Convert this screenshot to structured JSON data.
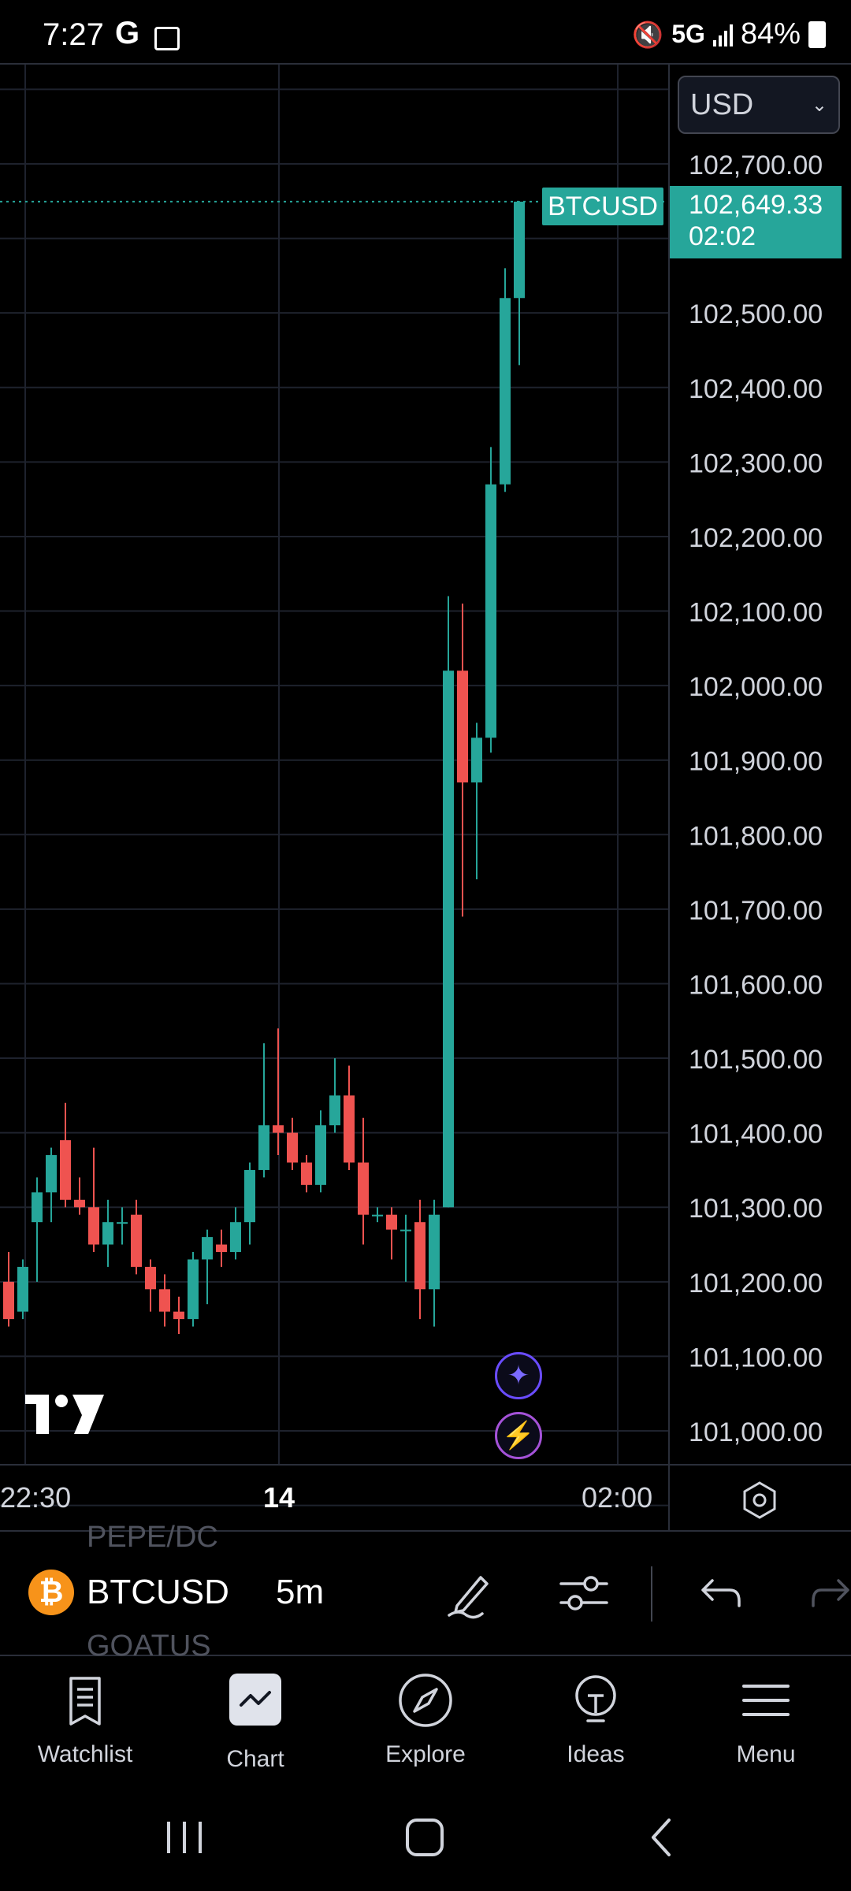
{
  "status_bar": {
    "time": "7:27",
    "google_icon": "G",
    "network": "5G",
    "battery": "84%"
  },
  "chart": {
    "currency_select": "USD",
    "symbol_tag": "BTCUSD",
    "last_price": "102,649.33",
    "countdown": "02:02",
    "colors": {
      "up": "#26a69a",
      "down": "#ef5350",
      "grid": "#1e222d",
      "background": "#000000"
    }
  },
  "chart_data": {
    "type": "candlestick",
    "y_tick_labels": [
      "102,700.00",
      "102,500.00",
      "102,400.00",
      "102,300.00",
      "102,200.00",
      "102,100.00",
      "102,000.00",
      "101,900.00",
      "101,800.00",
      "101,700.00",
      "101,600.00",
      "101,500.00",
      "101,400.00",
      "101,300.00",
      "101,200.00",
      "101,100.00",
      "101,000.00"
    ],
    "ylim": [
      100950,
      102820
    ],
    "x_tick_labels": [
      "22:30",
      "14",
      "02:00"
    ],
    "candles": [
      {
        "o": 101200,
        "h": 101240,
        "l": 101140,
        "c": 101150
      },
      {
        "o": 101160,
        "h": 101230,
        "l": 101150,
        "c": 101220
      },
      {
        "o": 101280,
        "h": 101340,
        "l": 101200,
        "c": 101320
      },
      {
        "o": 101320,
        "h": 101380,
        "l": 101280,
        "c": 101370
      },
      {
        "o": 101390,
        "h": 101440,
        "l": 101300,
        "c": 101310
      },
      {
        "o": 101310,
        "h": 101340,
        "l": 101290,
        "c": 101300
      },
      {
        "o": 101300,
        "h": 101380,
        "l": 101240,
        "c": 101250
      },
      {
        "o": 101250,
        "h": 101310,
        "l": 101220,
        "c": 101280
      },
      {
        "o": 101280,
        "h": 101300,
        "l": 101250,
        "c": 101280
      },
      {
        "o": 101290,
        "h": 101310,
        "l": 101210,
        "c": 101220
      },
      {
        "o": 101220,
        "h": 101230,
        "l": 101160,
        "c": 101190
      },
      {
        "o": 101190,
        "h": 101210,
        "l": 101140,
        "c": 101160
      },
      {
        "o": 101160,
        "h": 101180,
        "l": 101130,
        "c": 101150
      },
      {
        "o": 101150,
        "h": 101240,
        "l": 101140,
        "c": 101230
      },
      {
        "o": 101230,
        "h": 101270,
        "l": 101170,
        "c": 101260
      },
      {
        "o": 101250,
        "h": 101270,
        "l": 101220,
        "c": 101240
      },
      {
        "o": 101240,
        "h": 101300,
        "l": 101230,
        "c": 101280
      },
      {
        "o": 101280,
        "h": 101360,
        "l": 101250,
        "c": 101350
      },
      {
        "o": 101350,
        "h": 101520,
        "l": 101340,
        "c": 101410
      },
      {
        "o": 101410,
        "h": 101540,
        "l": 101370,
        "c": 101400
      },
      {
        "o": 101400,
        "h": 101420,
        "l": 101350,
        "c": 101360
      },
      {
        "o": 101360,
        "h": 101370,
        "l": 101320,
        "c": 101330
      },
      {
        "o": 101330,
        "h": 101430,
        "l": 101320,
        "c": 101410
      },
      {
        "o": 101410,
        "h": 101500,
        "l": 101400,
        "c": 101450
      },
      {
        "o": 101450,
        "h": 101490,
        "l": 101350,
        "c": 101360
      },
      {
        "o": 101360,
        "h": 101420,
        "l": 101250,
        "c": 101290
      },
      {
        "o": 101290,
        "h": 101300,
        "l": 101280,
        "c": 101290
      },
      {
        "o": 101290,
        "h": 101300,
        "l": 101230,
        "c": 101270
      },
      {
        "o": 101270,
        "h": 101290,
        "l": 101200,
        "c": 101270
      },
      {
        "o": 101280,
        "h": 101310,
        "l": 101150,
        "c": 101190
      },
      {
        "o": 101190,
        "h": 101310,
        "l": 101140,
        "c": 101290
      },
      {
        "o": 101300,
        "h": 102120,
        "l": 101300,
        "c": 102020
      },
      {
        "o": 102020,
        "h": 102110,
        "l": 101690,
        "c": 101870
      },
      {
        "o": 101870,
        "h": 101950,
        "l": 101740,
        "c": 101930
      },
      {
        "o": 101930,
        "h": 102320,
        "l": 101910,
        "c": 102270
      },
      {
        "o": 102270,
        "h": 102560,
        "l": 102260,
        "c": 102520
      },
      {
        "o": 102520,
        "h": 102650,
        "l": 102430,
        "c": 102649.33
      }
    ]
  },
  "toolbar": {
    "symbol": "BTCUSD",
    "interval": "5m",
    "ghost_prev": "PEPE/DC",
    "ghost_next": "GOATUS"
  },
  "bottom_nav": {
    "items": [
      {
        "label": "Watchlist",
        "icon": "watchlist-icon"
      },
      {
        "label": "Chart",
        "icon": "chart-icon"
      },
      {
        "label": "Explore",
        "icon": "compass-icon"
      },
      {
        "label": "Ideas",
        "icon": "lightbulb-icon"
      },
      {
        "label": "Menu",
        "icon": "menu-icon"
      }
    ]
  }
}
